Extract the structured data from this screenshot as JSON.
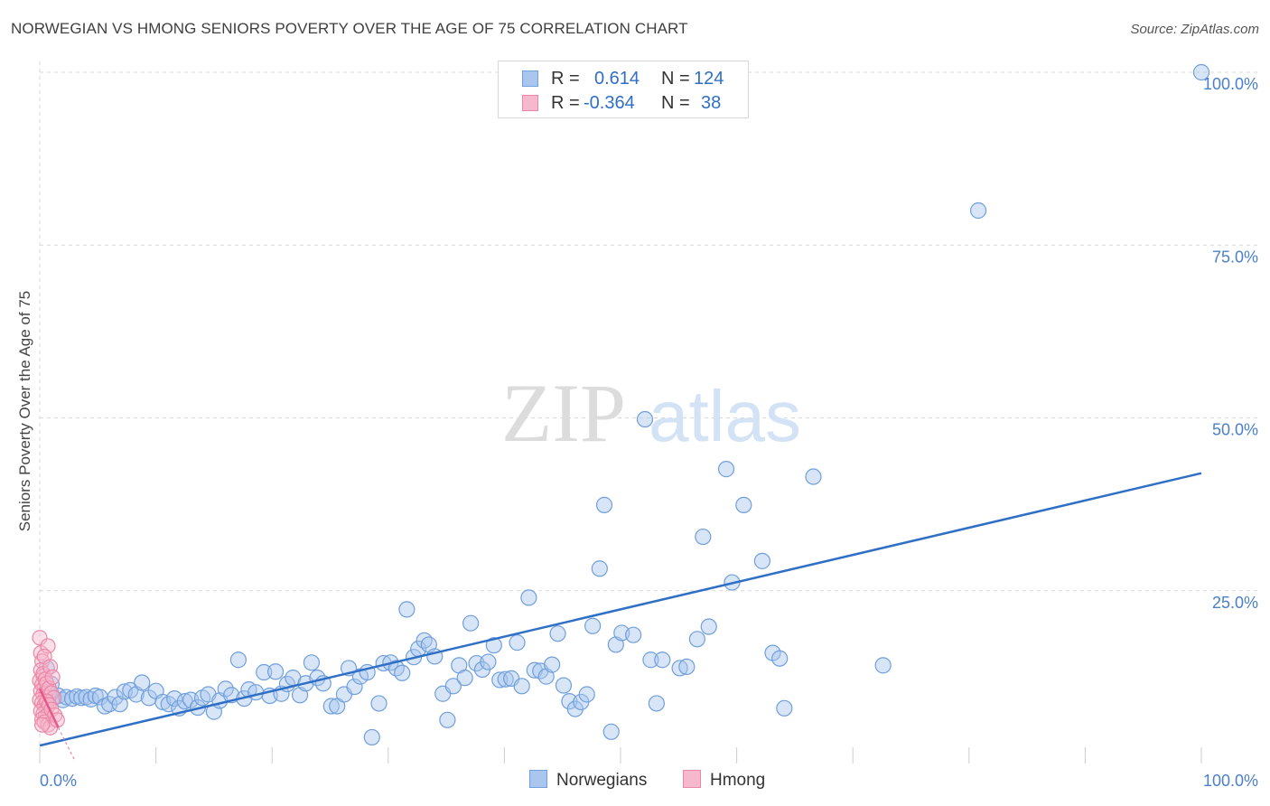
{
  "title": "NORWEGIAN VS HMONG SENIORS POVERTY OVER THE AGE OF 75 CORRELATION CHART",
  "source": "Source: ZipAtlas.com",
  "watermark": {
    "zip": "ZIP",
    "atlas": "atlas"
  },
  "legend": {
    "rows": [
      {
        "r_label": "R =",
        "r_value": "0.614",
        "n_label": "N =",
        "n_value": "124"
      },
      {
        "r_label": "R =",
        "r_value": "-0.364",
        "n_label": "N =",
        "n_value": "38"
      }
    ]
  },
  "bottom_legend": [
    "Norwegians",
    "Hmong"
  ],
  "colors": {
    "norwegians_fill": "#a9c6ee",
    "norwegians_stroke": "#6f9fdc",
    "norwegians_line": "#2f6fc6",
    "hmong_fill": "#f6b8cc",
    "hmong_stroke": "#ec86a7",
    "hmong_line": "#e8578a",
    "grid": "#d9d9d9",
    "axis_tick_label": "#4a7fcc"
  },
  "chart_data": {
    "type": "scatter",
    "title": "NORWEGIAN VS HMONG SENIORS POVERTY OVER THE AGE OF 75 CORRELATION CHART",
    "xlabel": "",
    "ylabel": "Seniors Poverty Over the Age of 75",
    "xlim": [
      0,
      100
    ],
    "ylim": [
      0,
      100
    ],
    "x_tick_labels": [
      "0.0%",
      "100.0%"
    ],
    "y_tick_labels": [
      "25.0%",
      "50.0%",
      "75.0%",
      "100.0%"
    ],
    "y_tick_values": [
      25,
      50,
      75,
      100
    ],
    "grid": "horizontal dashed",
    "legend_placement": "top-center",
    "series": [
      {
        "name": "Norwegians",
        "r": 0.614,
        "n": 124,
        "trend": {
          "x": [
            0,
            100
          ],
          "y": [
            2.6,
            42
          ]
        },
        "points": [
          [
            1.2,
            9.5
          ],
          [
            1.6,
            9.8
          ],
          [
            2.0,
            9.2
          ],
          [
            2.3,
            9.6
          ],
          [
            2.8,
            9.4
          ],
          [
            3.2,
            9.7
          ],
          [
            3.6,
            9.5
          ],
          [
            4.0,
            9.6
          ],
          [
            4.4,
            9.3
          ],
          [
            4.8,
            9.8
          ],
          [
            5.2,
            9.6
          ],
          [
            5.6,
            8.3
          ],
          [
            6.0,
            8.6
          ],
          [
            6.5,
            9.6
          ],
          [
            6.9,
            8.6
          ],
          [
            7.3,
            10.4
          ],
          [
            7.8,
            10.6
          ],
          [
            8.3,
            10.0
          ],
          [
            8.8,
            11.7
          ],
          [
            9.4,
            9.5
          ],
          [
            10.0,
            10.5
          ],
          [
            10.6,
            8.9
          ],
          [
            11.1,
            8.6
          ],
          [
            11.6,
            9.4
          ],
          [
            12.0,
            8.0
          ],
          [
            12.5,
            9.0
          ],
          [
            13.0,
            9.2
          ],
          [
            13.6,
            8.1
          ],
          [
            14.0,
            9.5
          ],
          [
            14.5,
            10.0
          ],
          [
            15.0,
            7.5
          ],
          [
            15.5,
            9.1
          ],
          [
            16.0,
            10.8
          ],
          [
            16.5,
            9.9
          ],
          [
            17.1,
            15.0
          ],
          [
            17.6,
            9.4
          ],
          [
            18.0,
            10.7
          ],
          [
            18.6,
            10.3
          ],
          [
            19.3,
            13.2
          ],
          [
            19.8,
            9.8
          ],
          [
            20.3,
            13.3
          ],
          [
            20.8,
            10.1
          ],
          [
            21.3,
            11.5
          ],
          [
            21.8,
            12.4
          ],
          [
            22.4,
            9.9
          ],
          [
            22.9,
            11.6
          ],
          [
            23.4,
            14.6
          ],
          [
            23.9,
            12.4
          ],
          [
            24.4,
            11.6
          ],
          [
            25.1,
            8.3
          ],
          [
            25.6,
            8.3
          ],
          [
            26.2,
            10.0
          ],
          [
            26.6,
            13.8
          ],
          [
            27.1,
            11.1
          ],
          [
            27.6,
            12.6
          ],
          [
            28.2,
            13.2
          ],
          [
            28.6,
            3.8
          ],
          [
            29.2,
            8.7
          ],
          [
            29.6,
            14.5
          ],
          [
            30.2,
            14.6
          ],
          [
            30.7,
            13.8
          ],
          [
            31.2,
            13.1
          ],
          [
            31.6,
            22.3
          ],
          [
            32.2,
            15.4
          ],
          [
            32.6,
            16.6
          ],
          [
            33.1,
            17.8
          ],
          [
            33.5,
            17.2
          ],
          [
            34.0,
            15.5
          ],
          [
            34.7,
            10.1
          ],
          [
            35.1,
            6.3
          ],
          [
            35.6,
            11.2
          ],
          [
            36.1,
            14.2
          ],
          [
            36.6,
            12.4
          ],
          [
            37.1,
            20.3
          ],
          [
            37.6,
            14.5
          ],
          [
            38.1,
            13.6
          ],
          [
            38.6,
            14.7
          ],
          [
            39.1,
            17.1
          ],
          [
            39.6,
            12.1
          ],
          [
            40.1,
            12.2
          ],
          [
            40.6,
            12.3
          ],
          [
            41.1,
            17.5
          ],
          [
            41.5,
            11.2
          ],
          [
            42.1,
            24.0
          ],
          [
            42.6,
            13.5
          ],
          [
            43.1,
            13.4
          ],
          [
            43.6,
            12.6
          ],
          [
            44.1,
            14.3
          ],
          [
            44.6,
            18.8
          ],
          [
            45.1,
            11.3
          ],
          [
            45.6,
            9.0
          ],
          [
            46.1,
            7.9
          ],
          [
            46.6,
            8.9
          ],
          [
            47.1,
            10.0
          ],
          [
            47.6,
            19.9
          ],
          [
            48.2,
            28.2
          ],
          [
            48.6,
            37.4
          ],
          [
            49.2,
            4.6
          ],
          [
            49.6,
            17.2
          ],
          [
            50.1,
            18.9
          ],
          [
            51.1,
            18.6
          ],
          [
            52.1,
            49.8
          ],
          [
            52.6,
            15.0
          ],
          [
            53.1,
            8.7
          ],
          [
            53.6,
            15.0
          ],
          [
            55.1,
            13.8
          ],
          [
            55.7,
            14.0
          ],
          [
            56.6,
            18.0
          ],
          [
            57.1,
            32.8
          ],
          [
            57.6,
            19.8
          ],
          [
            59.1,
            42.6
          ],
          [
            59.6,
            26.2
          ],
          [
            60.6,
            37.4
          ],
          [
            62.2,
            29.3
          ],
          [
            63.1,
            16.0
          ],
          [
            63.7,
            15.2
          ],
          [
            64.1,
            8.0
          ],
          [
            66.6,
            41.5
          ],
          [
            72.6,
            14.2
          ],
          [
            80.8,
            80.0
          ],
          [
            100.0,
            100.0
          ],
          [
            0.6,
            13.8
          ],
          [
            1.0,
            11.5
          ],
          [
            0.8,
            10.3
          ]
        ]
      },
      {
        "name": "Hmong",
        "r": -0.364,
        "n": 38,
        "trend": {
          "x": [
            0,
            1.6
          ],
          "y": [
            10.8,
            5.2
          ]
        },
        "points": [
          [
            0.0,
            18.2
          ],
          [
            0.1,
            16.0
          ],
          [
            0.2,
            14.8
          ],
          [
            0.1,
            13.5
          ],
          [
            0.3,
            12.6
          ],
          [
            0.0,
            12.0
          ],
          [
            0.2,
            11.4
          ],
          [
            0.4,
            11.0
          ],
          [
            0.1,
            10.5
          ],
          [
            0.3,
            10.0
          ],
          [
            0.5,
            9.6
          ],
          [
            0.0,
            9.2
          ],
          [
            0.2,
            8.8
          ],
          [
            0.4,
            8.4
          ],
          [
            0.6,
            8.0
          ],
          [
            0.1,
            7.6
          ],
          [
            0.3,
            7.2
          ],
          [
            0.5,
            6.8
          ],
          [
            0.2,
            6.4
          ],
          [
            0.4,
            6.0
          ],
          [
            0.7,
            5.6
          ],
          [
            0.9,
            5.2
          ],
          [
            0.3,
            13.0
          ],
          [
            0.5,
            12.2
          ],
          [
            0.6,
            11.6
          ],
          [
            0.8,
            10.9
          ],
          [
            1.0,
            10.2
          ],
          [
            1.2,
            9.5
          ],
          [
            0.7,
            17.0
          ],
          [
            0.4,
            15.5
          ],
          [
            0.9,
            14.0
          ],
          [
            1.1,
            12.5
          ],
          [
            0.6,
            9.0
          ],
          [
            0.8,
            8.5
          ],
          [
            1.0,
            7.8
          ],
          [
            1.3,
            7.0
          ],
          [
            1.5,
            6.3
          ],
          [
            0.2,
            5.6
          ]
        ]
      }
    ]
  }
}
